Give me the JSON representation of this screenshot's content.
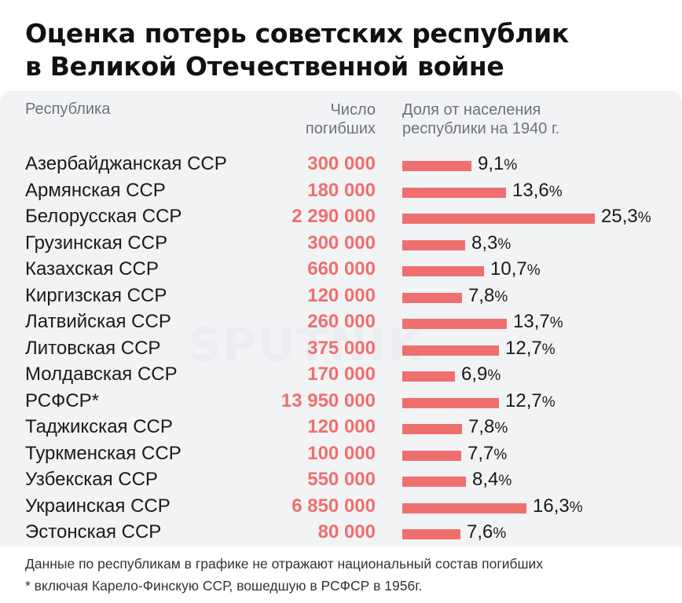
{
  "title_line1": "Оценка потерь советских республик",
  "title_line2": "в Великой Отечественной войне",
  "header": {
    "republic": "Республика",
    "deaths_line1": "Число",
    "deaths_line2": "погибших",
    "share_line1": "Доля от населения",
    "share_line2": "республики на 1940 г."
  },
  "chart_data": {
    "type": "bar",
    "orientation": "horizontal",
    "categories": [
      "Азербайджанская ССР",
      "Армянская ССР",
      "Белорусская ССР",
      "Грузинская ССР",
      "Казахская ССР",
      "Киргизская ССР",
      "Латвийская ССР",
      "Литовская ССР",
      "Молдавская ССР",
      "РСФСР*",
      "Таджикская ССР",
      "Туркменская ССР",
      "Узбекская ССР",
      "Украинская ССР",
      "Эстонская ССР"
    ],
    "deaths_labels": [
      "300 000",
      "180 000",
      "2 290 000",
      "300 000",
      "660 000",
      "120 000",
      "260 000",
      "375 000",
      "170 000",
      "13 950 000",
      "120 000",
      "100 000",
      "550 000",
      "6 850 000",
      "80 000"
    ],
    "values": [
      9.1,
      13.6,
      25.3,
      8.3,
      10.7,
      7.8,
      13.7,
      12.7,
      6.9,
      12.7,
      7.8,
      7.7,
      8.4,
      16.3,
      7.6
    ],
    "value_labels": [
      "9,1",
      "13,6",
      "25,3",
      "8,3",
      "10,7",
      "7,8",
      "13,7",
      "12,7",
      "6,9",
      "12,7",
      "7,8",
      "7,7",
      "8,4",
      "16,3",
      "7,6"
    ],
    "unit": "%",
    "xlim": [
      0,
      25.3
    ],
    "bar_color": "#ef6f6f"
  },
  "footer_line1": "Данные по республикам в графике не отражают национальный состав погибших",
  "footer_line2": "* включая Карело-Финскую ССР, вошедшую в РСФСР в 1956г."
}
